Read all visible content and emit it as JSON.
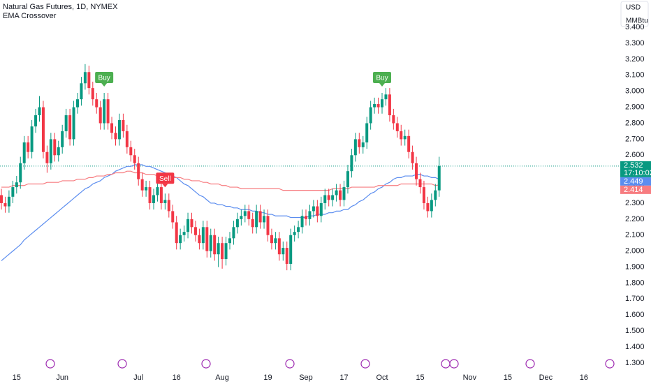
{
  "chart_data": {
    "type": "candlestick",
    "title": "Natural Gas Futures, 1D, NYMEX",
    "subtitle": "EMA Crossover",
    "currency": "USD",
    "unit": "MMBtu",
    "countdown": "17:10:02",
    "categories": [
      null,
      null,
      null,
      null,
      "15",
      null,
      null,
      null,
      null,
      null,
      null,
      null,
      null,
      null,
      null,
      null,
      "Jun",
      null,
      null,
      null,
      null,
      null,
      null,
      null,
      null,
      null,
      null,
      null,
      null,
      null,
      null,
      null,
      null,
      null,
      null,
      null,
      "Jul",
      null,
      null,
      null,
      null,
      null,
      null,
      null,
      null,
      null,
      "16",
      null,
      null,
      null,
      null,
      null,
      null,
      null,
      null,
      null,
      null,
      null,
      "Aug",
      null,
      null,
      null,
      null,
      null,
      null,
      null,
      null,
      null,
      null,
      null,
      "19",
      null,
      null,
      null,
      null,
      null,
      null,
      null,
      null,
      null,
      "Sep",
      null,
      null,
      null,
      null,
      null,
      null,
      null,
      null,
      null,
      "17",
      null,
      null,
      null,
      null,
      null,
      null,
      null,
      null,
      null,
      "Oct",
      null,
      null,
      null,
      null,
      null,
      null,
      null,
      null,
      null,
      "15",
      null,
      null,
      null,
      null,
      null
    ],
    "future_categories": [
      null,
      null,
      null,
      null,
      null,
      null,
      null,
      "Nov",
      null,
      null,
      null,
      null,
      null,
      null,
      null,
      null,
      null,
      "15",
      null,
      null,
      null,
      null,
      null,
      null,
      null,
      null,
      null,
      "Dec",
      null,
      null,
      null,
      null,
      null,
      null,
      null,
      null,
      null,
      "16",
      null,
      null,
      null,
      null,
      null,
      null,
      null,
      null
    ],
    "open": [
      2.35,
      2.3,
      2.28,
      2.34,
      2.4,
      2.43,
      2.55,
      2.68,
      2.62,
      2.78,
      2.85,
      2.9,
      2.62,
      2.55,
      2.7,
      2.6,
      2.65,
      2.75,
      2.85,
      2.7,
      2.9,
      2.95,
      3.05,
      3.12,
      3.02,
      2.95,
      2.9,
      2.8,
      2.95,
      2.8,
      2.74,
      2.7,
      2.82,
      2.75,
      2.65,
      2.6,
      2.55,
      2.45,
      2.38,
      2.4,
      2.3,
      2.35,
      2.4,
      2.3,
      2.32,
      2.25,
      2.18,
      2.05,
      2.1,
      2.12,
      2.2,
      2.15,
      2.1,
      2.05,
      2.15,
      2.0,
      2.1,
      1.98,
      2.05,
      1.95,
      2.05,
      2.08,
      2.15,
      2.2,
      2.22,
      2.25,
      2.2,
      2.15,
      2.25,
      2.18,
      2.22,
      2.1,
      2.05,
      2.08,
      1.98,
      2.02,
      1.92,
      2.1,
      2.12,
      2.15,
      2.22,
      2.2,
      2.25,
      2.28,
      2.22,
      2.3,
      2.35,
      2.32,
      2.35,
      2.38,
      2.32,
      2.4,
      2.5,
      2.6,
      2.7,
      2.65,
      2.68,
      2.8,
      2.9,
      2.92,
      2.9,
      2.95,
      2.98,
      2.85,
      2.8,
      2.75,
      2.7,
      2.72,
      2.62,
      2.55,
      2.45,
      2.4,
      2.3,
      2.25,
      2.32,
      2.38
    ],
    "high": [
      2.39,
      2.34,
      2.38,
      2.44,
      2.47,
      2.59,
      2.72,
      2.72,
      2.82,
      2.89,
      2.97,
      2.94,
      2.66,
      2.74,
      2.74,
      2.69,
      2.79,
      2.89,
      2.89,
      2.94,
      2.99,
      3.09,
      3.17,
      3.16,
      3.06,
      2.99,
      2.94,
      2.99,
      2.99,
      2.84,
      2.78,
      2.86,
      2.86,
      2.79,
      2.69,
      2.64,
      2.59,
      2.49,
      2.44,
      2.44,
      2.39,
      2.44,
      2.44,
      2.36,
      2.36,
      2.29,
      2.22,
      2.14,
      2.16,
      2.24,
      2.24,
      2.19,
      2.14,
      2.19,
      2.19,
      2.14,
      2.14,
      2.09,
      2.09,
      2.09,
      2.12,
      2.19,
      2.24,
      2.26,
      2.29,
      2.29,
      2.24,
      2.29,
      2.29,
      2.26,
      2.26,
      2.14,
      2.12,
      2.12,
      2.06,
      2.06,
      2.14,
      2.16,
      2.19,
      2.26,
      2.26,
      2.29,
      2.32,
      2.32,
      2.34,
      2.39,
      2.39,
      2.39,
      2.42,
      2.42,
      2.44,
      2.54,
      2.64,
      2.74,
      2.74,
      2.72,
      2.84,
      2.94,
      2.96,
      2.96,
      2.99,
      3.02,
      3.02,
      2.89,
      2.84,
      2.79,
      2.76,
      2.76,
      2.66,
      2.59,
      2.49,
      2.44,
      2.34,
      2.36,
      2.42,
      2.59
    ],
    "low": [
      2.26,
      2.24,
      2.24,
      2.3,
      2.36,
      2.39,
      2.51,
      2.58,
      2.58,
      2.74,
      2.81,
      2.58,
      2.49,
      2.51,
      2.56,
      2.56,
      2.61,
      2.71,
      2.66,
      2.66,
      2.86,
      2.91,
      3.01,
      2.98,
      2.91,
      2.86,
      2.76,
      2.76,
      2.76,
      2.7,
      2.66,
      2.66,
      2.71,
      2.61,
      2.56,
      2.51,
      2.41,
      2.34,
      2.34,
      2.26,
      2.26,
      2.31,
      2.26,
      2.26,
      2.21,
      2.14,
      2.01,
      2.01,
      2.06,
      2.08,
      2.11,
      2.06,
      2.01,
      2.01,
      1.96,
      1.96,
      1.94,
      1.9,
      1.89,
      1.91,
      2.01,
      2.04,
      2.11,
      2.16,
      2.18,
      2.16,
      2.11,
      2.11,
      2.14,
      2.14,
      2.06,
      2.01,
      2.01,
      1.94,
      1.94,
      1.88,
      1.88,
      2.06,
      2.08,
      2.11,
      2.16,
      2.16,
      2.21,
      2.18,
      2.18,
      2.26,
      2.28,
      2.28,
      2.31,
      2.28,
      2.28,
      2.36,
      2.46,
      2.56,
      2.61,
      2.61,
      2.64,
      2.76,
      2.86,
      2.86,
      2.86,
      2.91,
      2.81,
      2.76,
      2.71,
      2.66,
      2.66,
      2.58,
      2.51,
      2.41,
      2.36,
      2.26,
      2.21,
      2.21,
      2.28,
      2.34
    ],
    "close": [
      2.3,
      2.28,
      2.34,
      2.4,
      2.43,
      2.55,
      2.68,
      2.62,
      2.78,
      2.85,
      2.9,
      2.62,
      2.55,
      2.7,
      2.6,
      2.65,
      2.75,
      2.85,
      2.7,
      2.9,
      2.95,
      3.05,
      3.12,
      3.02,
      2.95,
      2.9,
      2.8,
      2.95,
      2.8,
      2.74,
      2.7,
      2.82,
      2.75,
      2.65,
      2.6,
      2.55,
      2.45,
      2.38,
      2.4,
      2.3,
      2.35,
      2.4,
      2.3,
      2.32,
      2.25,
      2.18,
      2.05,
      2.1,
      2.12,
      2.2,
      2.15,
      2.1,
      2.05,
      2.15,
      2.0,
      2.1,
      1.98,
      2.05,
      1.95,
      2.05,
      2.08,
      2.15,
      2.2,
      2.22,
      2.25,
      2.2,
      2.15,
      2.25,
      2.18,
      2.22,
      2.1,
      2.05,
      2.08,
      1.98,
      2.02,
      1.92,
      2.1,
      2.12,
      2.15,
      2.22,
      2.2,
      2.25,
      2.28,
      2.22,
      2.3,
      2.35,
      2.32,
      2.35,
      2.38,
      2.32,
      2.4,
      2.5,
      2.6,
      2.7,
      2.65,
      2.68,
      2.8,
      2.9,
      2.92,
      2.9,
      2.95,
      2.98,
      2.85,
      2.8,
      2.75,
      2.7,
      2.72,
      2.62,
      2.55,
      2.45,
      2.4,
      2.3,
      2.25,
      2.32,
      2.38,
      2.532
    ],
    "up_color": "#089981",
    "down_color": "#f23645",
    "series": [
      {
        "color": "#5b8def",
        "values": [
          1.94,
          1.96,
          1.98,
          2.0,
          2.02,
          2.04,
          2.07,
          2.09,
          2.11,
          2.13,
          2.15,
          2.17,
          2.19,
          2.21,
          2.23,
          2.25,
          2.27,
          2.29,
          2.31,
          2.33,
          2.35,
          2.37,
          2.39,
          2.4,
          2.42,
          2.43,
          2.44,
          2.46,
          2.47,
          2.48,
          2.5,
          2.51,
          2.52,
          2.53,
          2.53,
          2.54,
          2.54,
          2.54,
          2.53,
          2.53,
          2.52,
          2.51,
          2.5,
          2.49,
          2.48,
          2.47,
          2.46,
          2.44,
          2.42,
          2.41,
          2.39,
          2.37,
          2.35,
          2.34,
          2.32,
          2.3,
          2.3,
          2.29,
          2.29,
          2.28,
          2.28,
          2.27,
          2.27,
          2.26,
          2.26,
          2.26,
          2.25,
          2.25,
          2.24,
          2.24,
          2.23,
          2.23,
          2.22,
          2.22,
          2.22,
          2.22,
          2.21,
          2.21,
          2.21,
          2.21,
          2.21,
          2.22,
          2.22,
          2.23,
          2.23,
          2.23,
          2.24,
          2.24,
          2.25,
          2.25,
          2.26,
          2.26,
          2.28,
          2.29,
          2.31,
          2.32,
          2.34,
          2.36,
          2.37,
          2.39,
          2.4,
          2.42,
          2.43,
          2.45,
          2.46,
          2.46,
          2.47,
          2.47,
          2.47,
          2.48,
          2.48,
          2.47,
          2.47,
          2.46,
          2.46,
          2.449
        ]
      },
      {
        "color": "#f77c80",
        "values": [
          2.4,
          2.4,
          2.4,
          2.41,
          2.41,
          2.41,
          2.41,
          2.42,
          2.42,
          2.42,
          2.42,
          2.42,
          2.43,
          2.43,
          2.43,
          2.43,
          2.44,
          2.44,
          2.44,
          2.44,
          2.45,
          2.45,
          2.45,
          2.46,
          2.46,
          2.47,
          2.47,
          2.47,
          2.48,
          2.48,
          2.49,
          2.49,
          2.49,
          2.5,
          2.5,
          2.49,
          2.49,
          2.49,
          2.48,
          2.48,
          2.48,
          2.47,
          2.47,
          2.47,
          2.46,
          2.46,
          2.46,
          2.46,
          2.45,
          2.45,
          2.44,
          2.44,
          2.44,
          2.43,
          2.43,
          2.42,
          2.42,
          2.42,
          2.41,
          2.41,
          2.4,
          2.4,
          2.4,
          2.39,
          2.39,
          2.39,
          2.39,
          2.39,
          2.39,
          2.39,
          2.39,
          2.39,
          2.39,
          2.39,
          2.38,
          2.38,
          2.38,
          2.38,
          2.38,
          2.38,
          2.38,
          2.38,
          2.38,
          2.38,
          2.38,
          2.38,
          2.38,
          2.39,
          2.39,
          2.39,
          2.39,
          2.39,
          2.4,
          2.4,
          2.4,
          2.4,
          2.4,
          2.4,
          2.4,
          2.41,
          2.41,
          2.41,
          2.41,
          2.41,
          2.41,
          2.42,
          2.42,
          2.42,
          2.42,
          2.42,
          2.42,
          2.42,
          2.42,
          2.42,
          2.41,
          2.414
        ]
      }
    ],
    "signals": [
      null,
      null,
      null,
      null,
      null,
      null,
      null,
      null,
      null,
      null,
      null,
      null,
      null,
      null,
      null,
      null,
      null,
      null,
      null,
      null,
      null,
      null,
      null,
      null,
      null,
      null,
      null,
      {
        "label": "Buy",
        "color": "#4caf50"
      },
      null,
      null,
      null,
      null,
      null,
      null,
      null,
      null,
      null,
      null,
      null,
      null,
      null,
      null,
      null,
      {
        "label": "Sell",
        "color": "#f23645"
      },
      null,
      null,
      null,
      null,
      null,
      null,
      null,
      null,
      null,
      null,
      null,
      null,
      null,
      null,
      null,
      null,
      null,
      null,
      null,
      null,
      null,
      null,
      null,
      null,
      null,
      null,
      null,
      null,
      null,
      null,
      null,
      null,
      null,
      null,
      null,
      null,
      null,
      null,
      null,
      null,
      null,
      null,
      null,
      null,
      null,
      null,
      null,
      null,
      null,
      null,
      null,
      null,
      null,
      null,
      null,
      null,
      {
        "label": "Buy",
        "color": "#4caf50"
      },
      null,
      null,
      null,
      null,
      null,
      null,
      null,
      null,
      null,
      null,
      null,
      null,
      null,
      null,
      null
    ],
    "ylim": [
      1.234,
      3.571
    ],
    "yticks": [
      {
        "value": 1.3,
        "label": "1.300"
      },
      {
        "value": 1.4,
        "label": "1.400"
      },
      {
        "value": 1.5,
        "label": "1.500"
      },
      {
        "value": 1.6,
        "label": "1.600"
      },
      {
        "value": 1.7,
        "label": "1.700"
      },
      {
        "value": 1.8,
        "label": "1.800"
      },
      {
        "value": 1.9,
        "label": "1.900"
      },
      {
        "value": 2.0,
        "label": "2.000"
      },
      {
        "value": 2.1,
        "label": "2.100"
      },
      {
        "value": 2.2,
        "label": "2.200"
      },
      {
        "value": 2.3,
        "label": "2.300"
      },
      {
        "value": 2.4,
        "label": "2.400"
      },
      {
        "value": 2.5,
        "label": "2.500"
      },
      {
        "value": 2.6,
        "label": "2.600"
      },
      {
        "value": 2.7,
        "label": "2.700"
      },
      {
        "value": 2.8,
        "label": "2.800"
      },
      {
        "value": 2.9,
        "label": "2.900"
      },
      {
        "value": 3.0,
        "label": "3.000"
      },
      {
        "value": 3.1,
        "label": "3.100"
      },
      {
        "value": 3.2,
        "label": "3.200"
      },
      {
        "value": 3.3,
        "label": "3.300"
      },
      {
        "value": 3.4,
        "label": "3.400"
      }
    ]
  }
}
